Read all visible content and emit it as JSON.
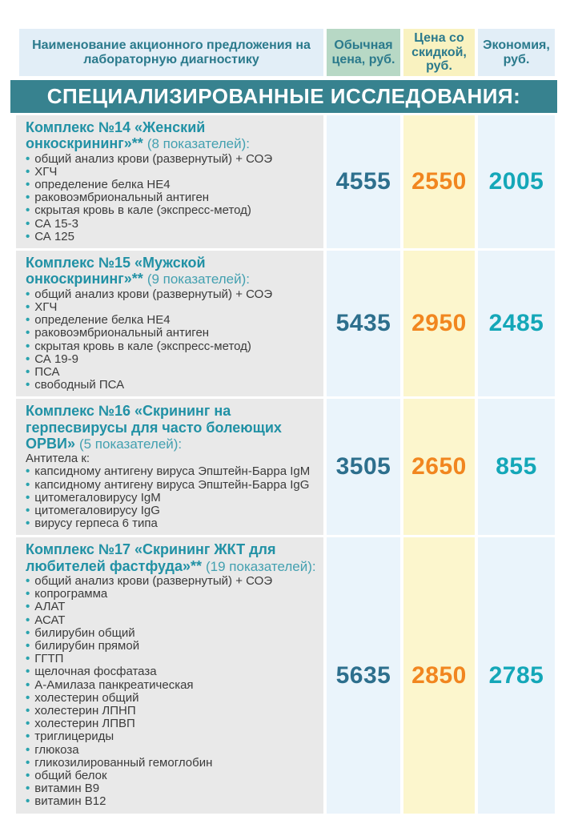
{
  "table": {
    "header": {
      "name_label": "Наименование акционного предложения на лабораторную диагностику",
      "col_regular": "Обычная цена, руб.",
      "col_discount": "Цена со скидкой, руб.",
      "col_savings": "Экономия, руб."
    },
    "section_banner": "СПЕЦИАЛИЗИРОВАННЫЕ ИССЛЕДОВАНИЯ:",
    "rows": [
      {
        "title": "Комплекс №14 «Женский онкоскрининг»**",
        "subtitle": "(8 показателей):",
        "intro": "",
        "items": [
          "общий анализ крови (развернутый) + СОЭ",
          "ХГЧ",
          "определение белка НЕ4",
          "раковоэмбриональный антиген",
          "скрытая кровь в кале (экспресс-метод)",
          "СА 15-3",
          "СА 125"
        ],
        "regular_price": "4555",
        "discount_price": "2550",
        "savings": "2005"
      },
      {
        "title": "Комплекс №15 «Мужской онкоскрининг»**",
        "subtitle": "(9 показателей):",
        "intro": "",
        "items": [
          "общий анализ крови (развернутый) + СОЭ",
          "ХГЧ",
          "определение белка НЕ4",
          "раковоэмбриональный антиген",
          "скрытая кровь в кале (экспресс-метод)",
          "СА 19-9",
          "ПСА",
          "свободный ПСА"
        ],
        "regular_price": "5435",
        "discount_price": "2950",
        "savings": "2485"
      },
      {
        "title": "Комплекс №16 «Скрининг на герпесвирусы для часто болеющих ОРВИ»",
        "subtitle": "(5 показателей):",
        "intro": "Антитела к:",
        "items": [
          "капсидному антигену вируса Эпштейн-Барра IgM",
          "капсидному антигену вируса Эпштейн-Барра IgG",
          "цитомегаловирусу IgM",
          "цитомегаловирусу IgG",
          "вирусу герпеса 6 типа"
        ],
        "regular_price": "3505",
        "discount_price": "2650",
        "savings": "855"
      },
      {
        "title": "Комплекс №17 «Скрининг ЖКТ для любителей фастфуда»**",
        "subtitle": "(19 показателей):",
        "intro": "",
        "items": [
          "общий анализ крови (развернутый) + СОЭ",
          "копрограмма",
          "АЛАТ",
          "АСАТ",
          "билирубин общий",
          "билирубин прямой",
          "ГГТП",
          "щелочная фосфатаза",
          "А-Амилаза панкреатическая",
          "холестерин общий",
          "холестерин ЛПНП",
          "холестерин ЛПВП",
          "триглицериды",
          "глюкоза",
          "гликозилированный гемоглобин",
          "общий белок",
          "витамин В9",
          "витамин В12"
        ],
        "regular_price": "5635",
        "discount_price": "2850",
        "savings": "2785"
      }
    ],
    "colors": {
      "banner_bg": "#37828f",
      "title_teal": "#2191a5",
      "header_text": "#2b7a8c",
      "regular_price": "#2d6f8d",
      "discount_price": "#f1861f",
      "savings_price": "#14a7b8",
      "desc_bg": "#e9e9e9",
      "price_col_bg": "#eaf4fb",
      "discount_col_bg": "#fcf6cd",
      "header_blue_bg": "#e2eef7",
      "header_green_bg": "#b7d8c5",
      "header_yellow_bg": "#f9f2c0",
      "bullet": "#2aa3ae"
    }
  }
}
